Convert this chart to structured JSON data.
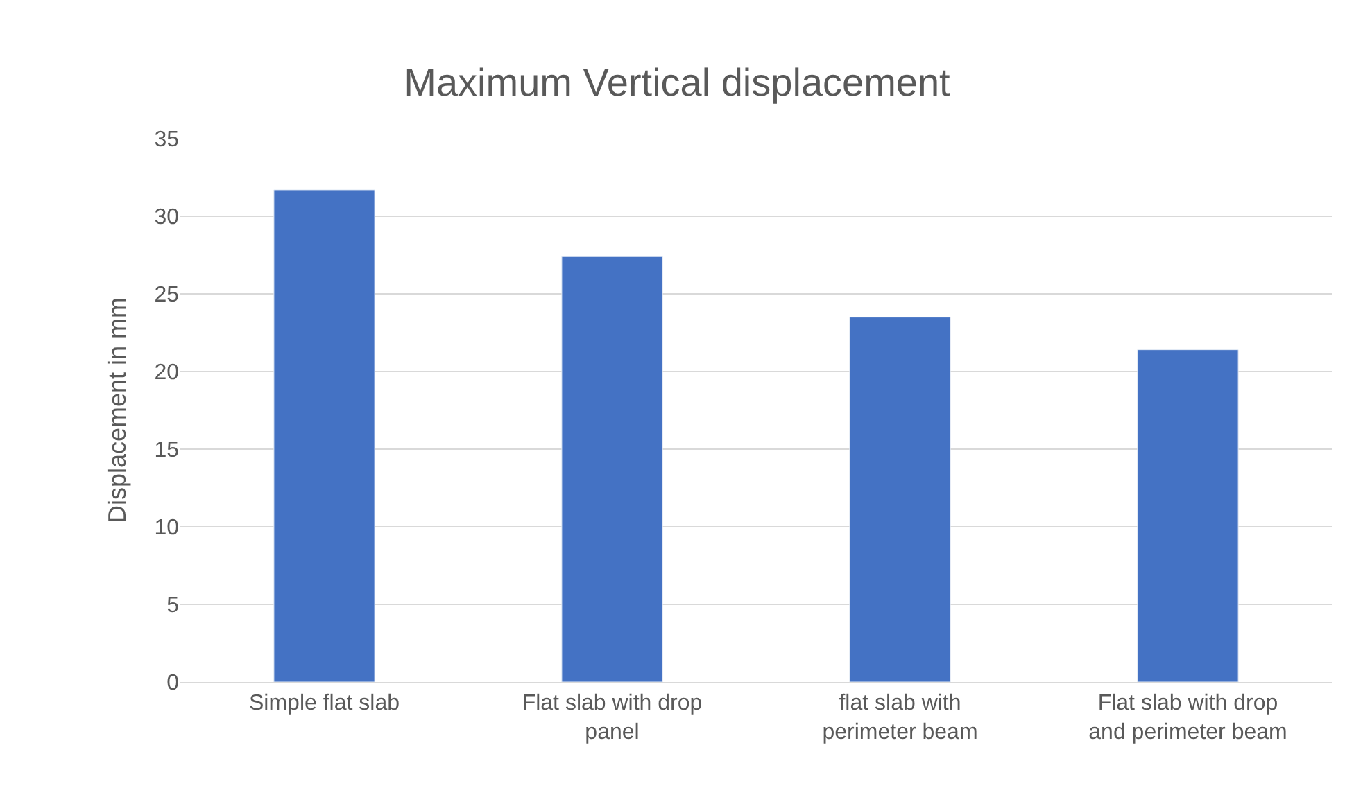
{
  "chart_data": {
    "type": "bar",
    "title": "Maximum Vertical displacement",
    "ylabel": "Displacement in mm",
    "categories": [
      "Simple flat slab",
      "Flat slab with drop panel",
      "flat slab with perimeter beam",
      "Flat slab with drop and perimeter beam"
    ],
    "values": [
      31.7,
      27.4,
      23.5,
      21.4
    ],
    "color": "#4472c4",
    "ylim": [
      0,
      35
    ],
    "yticks": [
      0,
      5,
      10,
      15,
      20,
      25,
      30,
      35
    ],
    "grid": "y"
  }
}
